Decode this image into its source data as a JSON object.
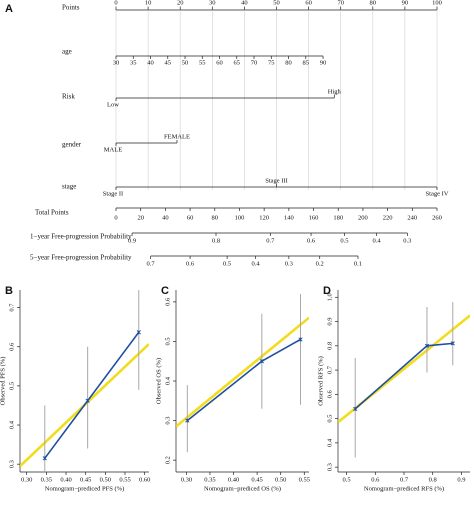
{
  "chart_data": [
    {
      "type": "nomogram",
      "panel_label": "A",
      "points": {
        "label": "Points",
        "lim": [
          0,
          100
        ],
        "ticks": [
          0,
          10,
          20,
          30,
          40,
          50,
          60,
          70,
          80,
          90,
          100
        ]
      },
      "variables": [
        {
          "label": "age",
          "lim": [
            30,
            90
          ],
          "points_lim": [
            0,
            64.5
          ],
          "ticks": [
            30,
            35,
            40,
            45,
            50,
            55,
            60,
            65,
            70,
            75,
            80,
            85,
            90
          ]
        },
        {
          "label": "Risk",
          "levels": [
            {
              "label": "Low",
              "points": 0
            },
            {
              "label": "High",
              "points": 68
            }
          ]
        },
        {
          "label": "gender",
          "levels": [
            {
              "label": "MALE",
              "points": 0
            },
            {
              "label": "FEMALE",
              "points": 19
            }
          ]
        },
        {
          "label": "stage",
          "levels": [
            {
              "label": "Stage II",
              "points": 0
            },
            {
              "label": "Stage III",
              "points": 50
            },
            {
              "label": "Stage IV",
              "points": 100
            }
          ]
        }
      ],
      "total_points": {
        "label": "Total Points",
        "lim": [
          0,
          260
        ],
        "ticks": [
          0,
          20,
          40,
          60,
          80,
          100,
          120,
          140,
          160,
          180,
          200,
          220,
          240,
          260
        ]
      },
      "probabilities": [
        {
          "label": "1−year Free-progression Probability",
          "ticks": [
            {
              "value": 0.9,
              "total_points": 13
            },
            {
              "value": 0.8,
              "total_points": 81
            },
            {
              "value": 0.7,
              "total_points": 125
            },
            {
              "value": 0.6,
              "total_points": 158
            },
            {
              "value": 0.5,
              "total_points": 185
            },
            {
              "value": 0.4,
              "total_points": 211
            },
            {
              "value": 0.3,
              "total_points": 236
            }
          ]
        },
        {
          "label": "5−year Free-progression Probability",
          "ticks": [
            {
              "value": 0.7,
              "total_points": 28
            },
            {
              "value": 0.6,
              "total_points": 60
            },
            {
              "value": 0.5,
              "total_points": 90
            },
            {
              "value": 0.4,
              "total_points": 113
            },
            {
              "value": 0.3,
              "total_points": 140
            },
            {
              "value": 0.2,
              "total_points": 165
            },
            {
              "value": 0.1,
              "total_points": 196
            }
          ]
        }
      ]
    },
    {
      "type": "line",
      "panel_label": "B",
      "x_label": "Nomogram−prediced PFS (%)",
      "y_label": "Observed PFS (%)",
      "xlim": [
        0.283,
        0.611
      ],
      "xticks": [
        {
          "value": 0.3,
          "label": "0.30"
        },
        {
          "value": 0.35,
          "label": "0.35"
        },
        {
          "value": 0.4,
          "label": "0.40"
        },
        {
          "value": 0.45,
          "label": "0.45"
        },
        {
          "value": 0.5,
          "label": "0.50"
        },
        {
          "value": 0.55,
          "label": "0.55"
        },
        {
          "value": 0.6,
          "label": "0.60"
        }
      ],
      "ylim": [
        0.28,
        0.745
      ],
      "yticks": [
        0.3,
        0.4,
        0.5,
        0.6,
        0.7
      ],
      "series": [
        {
          "color": "#f2dc1b",
          "x": [
            0.283,
            0.611
          ],
          "values": [
            0.295,
            0.607
          ]
        },
        {
          "color": "#1f4f9f",
          "x": [
            0.346,
            0.455,
            0.585
          ],
          "values": [
            0.315,
            0.462,
            0.637
          ],
          "error_low": [
            0.27,
            0.34,
            0.49
          ],
          "error_high": [
            0.45,
            0.6,
            0.76
          ]
        }
      ]
    },
    {
      "type": "line",
      "panel_label": "C",
      "x_label": "Nomogram−prediced OS (%)",
      "y_label": "Observed OS (%)",
      "xlim": [
        0.278,
        0.56
      ],
      "xticks": [
        {
          "value": 0.3,
          "label": "0.30"
        },
        {
          "value": 0.35,
          "label": "0.35"
        },
        {
          "value": 0.4,
          "label": "0.40"
        },
        {
          "value": 0.45,
          "label": "0.45"
        },
        {
          "value": 0.5,
          "label": "0.50"
        },
        {
          "value": 0.55,
          "label": "0.55"
        }
      ],
      "ylim": [
        0.17,
        0.63
      ],
      "yticks": [
        0.2,
        0.3,
        0.4,
        0.5,
        0.6
      ],
      "series": [
        {
          "color": "#f2dc1b",
          "x": [
            0.278,
            0.56
          ],
          "values": [
            0.285,
            0.56
          ]
        },
        {
          "color": "#1f4f9f",
          "x": [
            0.302,
            0.46,
            0.542
          ],
          "values": [
            0.3,
            0.45,
            0.505
          ],
          "error_low": [
            0.22,
            0.33,
            0.34
          ],
          "error_high": [
            0.39,
            0.57,
            0.62
          ]
        }
      ]
    },
    {
      "type": "line",
      "panel_label": "D",
      "x_label": "Nomogram−prediced RFS (%)",
      "y_label": "Observed RFS (%)",
      "xlim": [
        0.47,
        0.93
      ],
      "xticks": [
        0.5,
        0.6,
        0.7,
        0.8,
        0.9
      ],
      "ylim": [
        0.28,
        1.03
      ],
      "yticks": [
        0.3,
        0.4,
        0.5,
        0.6,
        0.7,
        0.8,
        0.9,
        {
          "value": 1,
          "label": "1.0"
        }
      ],
      "series": [
        {
          "color": "#f2dc1b",
          "x": [
            0.47,
            0.93
          ],
          "values": [
            0.485,
            0.925
          ]
        },
        {
          "color": "#1f4f9f",
          "x": [
            0.53,
            0.78,
            0.87
          ],
          "values": [
            0.54,
            0.8,
            0.81
          ],
          "error_low": [
            0.34,
            0.69,
            0.72
          ],
          "error_high": [
            0.75,
            0.96,
            0.98
          ]
        }
      ]
    }
  ]
}
